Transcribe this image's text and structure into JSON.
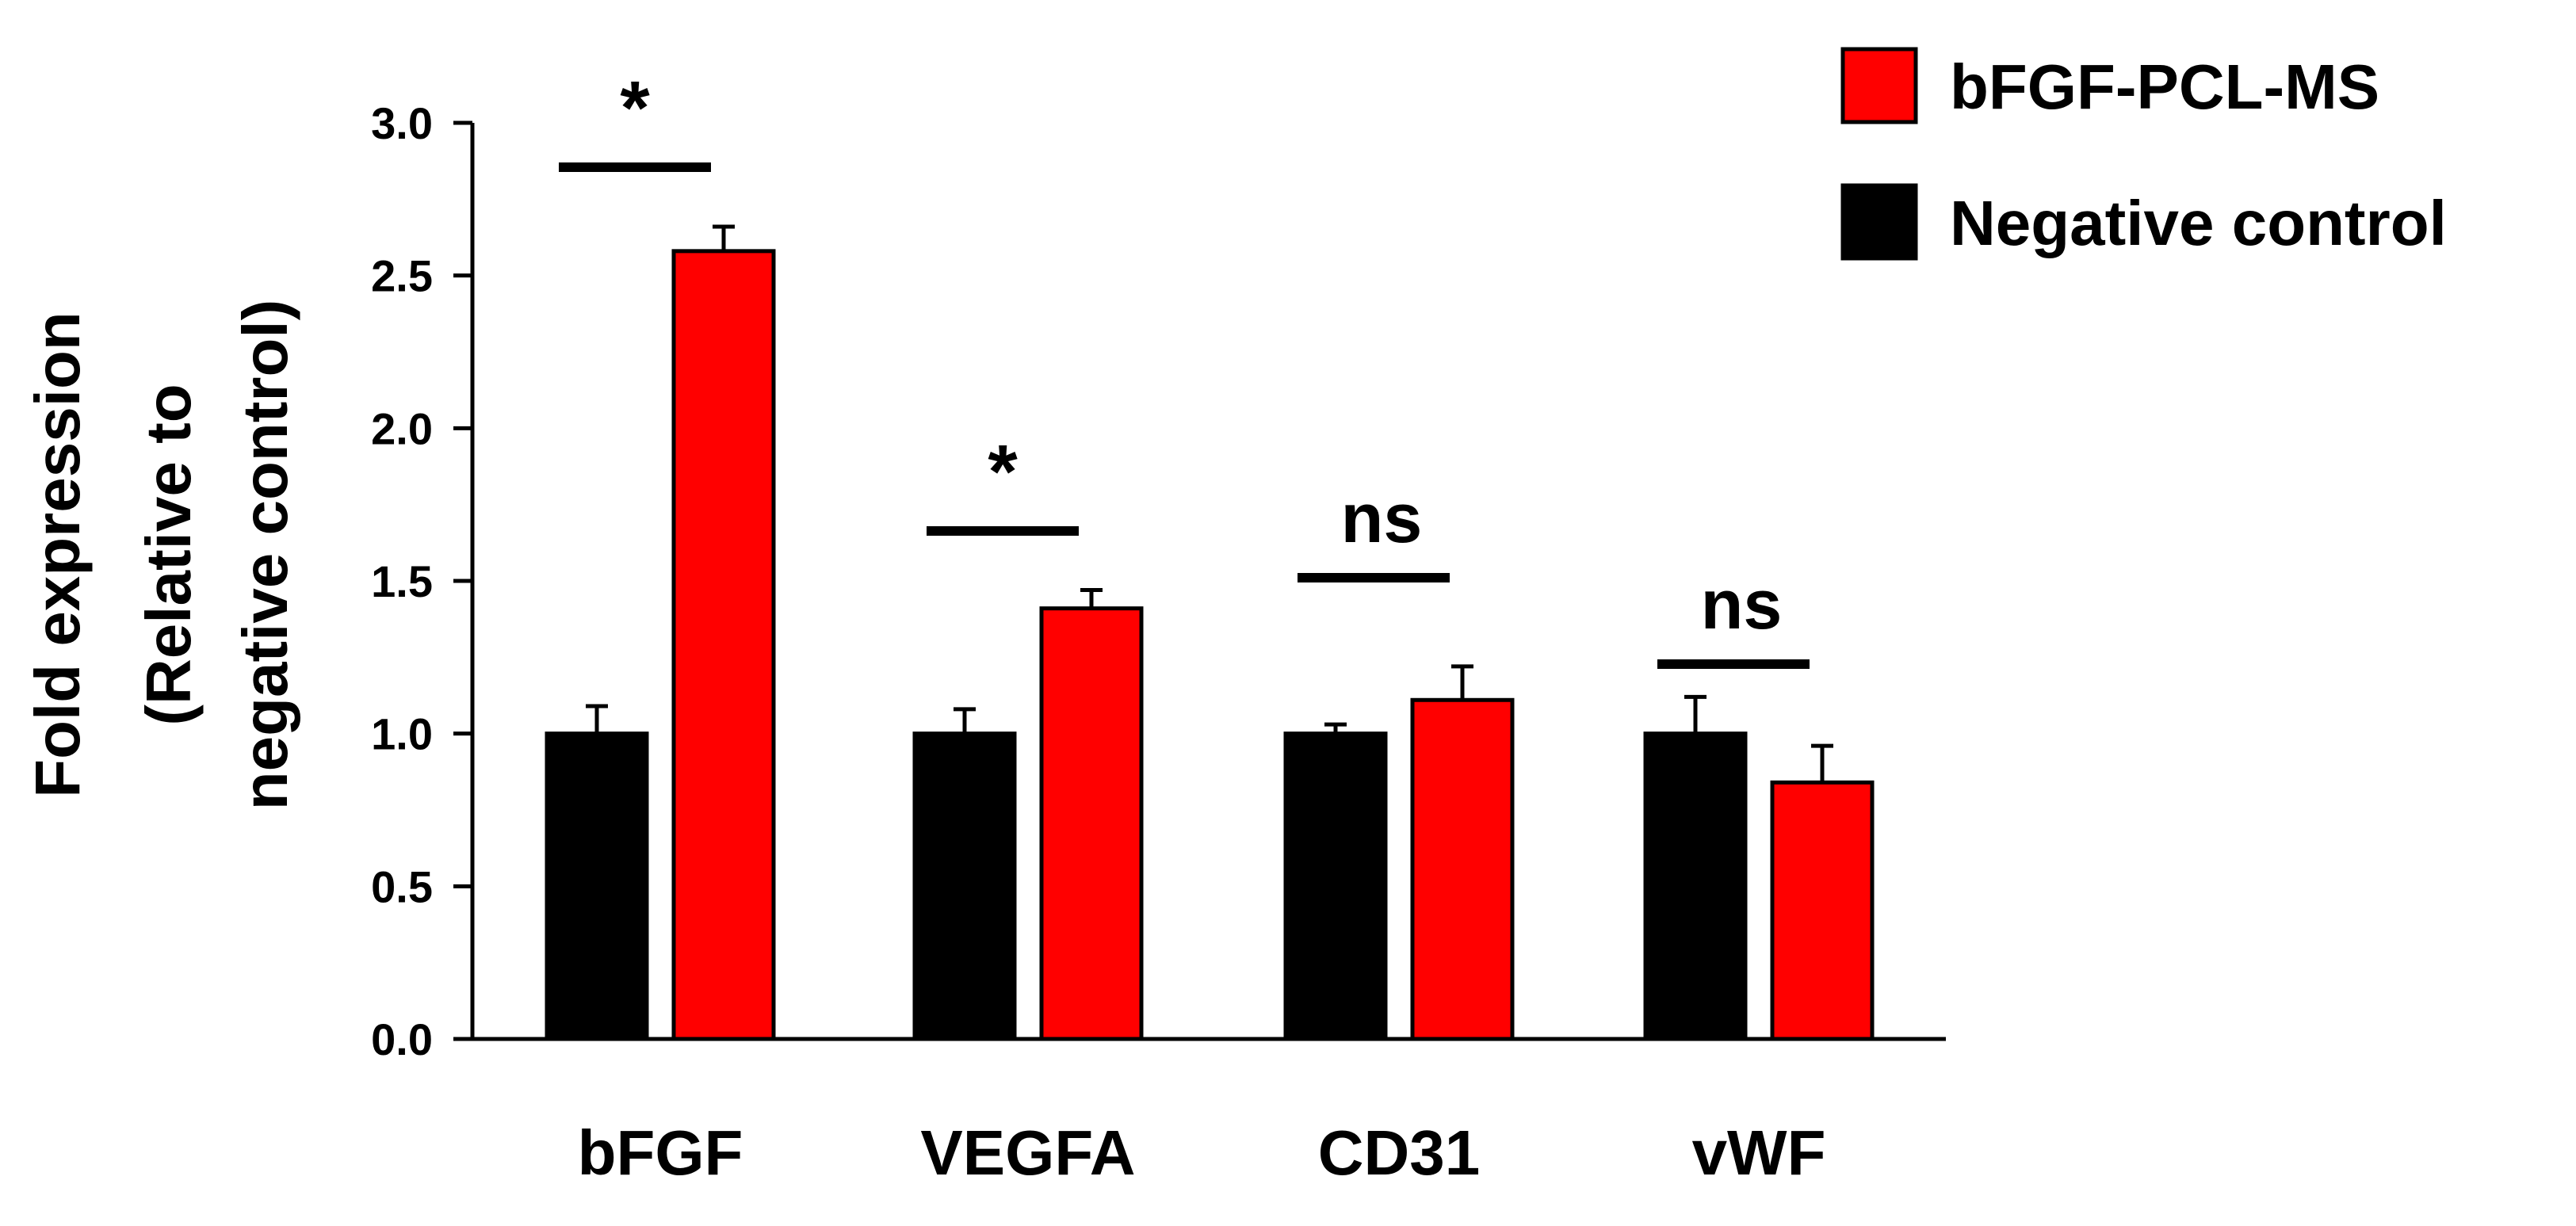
{
  "chart_data": {
    "type": "bar",
    "title": "",
    "xlabel": "",
    "ylabel_lines": [
      "Fold expression",
      "(Relative to",
      "negative control)"
    ],
    "ylim": [
      0,
      3
    ],
    "yticks": [
      "0.0",
      "0.5",
      "1.0",
      "1.5",
      "2.0",
      "2.5",
      "3.0"
    ],
    "categories": [
      "bFGF",
      "VEGFA",
      "CD31",
      "vWF"
    ],
    "series": [
      {
        "name": "Negative control",
        "color": "#000000",
        "values": [
          1.0,
          1.0,
          1.0,
          1.0
        ],
        "errors": [
          0.09,
          0.08,
          0.03,
          0.12
        ]
      },
      {
        "name": "bFGF-PCL-MS",
        "color": "#ff0000",
        "values": [
          2.58,
          1.41,
          1.11,
          0.84
        ],
        "errors": [
          0.08,
          0.06,
          0.11,
          0.12
        ]
      }
    ],
    "significance": [
      "*",
      "*",
      "ns",
      "ns"
    ],
    "grid": false,
    "legend_position": "top-right",
    "legend_order": [
      "bFGF-PCL-MS",
      "Negative control"
    ]
  }
}
